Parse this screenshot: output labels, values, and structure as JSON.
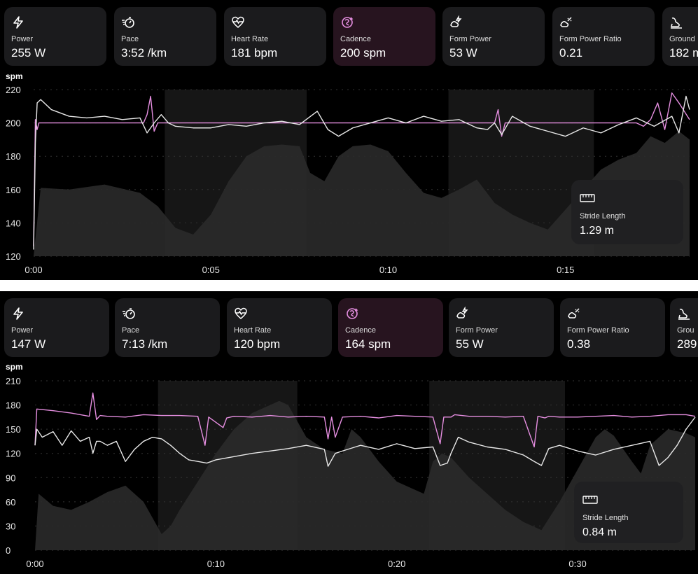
{
  "colors": {
    "accent": "#e58ee0",
    "line": "#e8e8e8",
    "card": "#1b1b1d",
    "card_active": "#27141f",
    "shade": "#2a2a2a"
  },
  "panels": [
    {
      "cards": [
        {
          "icon": "lightning-icon",
          "label": "Power",
          "value": "255 W"
        },
        {
          "icon": "stopwatch-icon",
          "label": "Pace",
          "value": "3:52 /km"
        },
        {
          "icon": "heart-pulse-icon",
          "label": "Heart Rate",
          "value": "181 bpm"
        },
        {
          "icon": "cadence-icon",
          "label": "Cadence",
          "value": "200 spm",
          "active": true
        },
        {
          "icon": "form-power-icon",
          "label": "Form Power",
          "value": "53 W"
        },
        {
          "icon": "form-power-ratio-icon",
          "label": "Form Power Ratio",
          "value": "0.21"
        },
        {
          "icon": "ground-contact-icon",
          "label": "Ground",
          "value": "182 m"
        }
      ],
      "unit": "spm",
      "stride": {
        "label": "Stride Length",
        "value": "1.29 m"
      },
      "chart_data": {
        "type": "line",
        "ylim": [
          120,
          220
        ],
        "yticks": [
          120,
          140,
          160,
          180,
          200,
          220
        ],
        "xticks": [
          "0:00",
          "0:05",
          "0:10",
          "0:15"
        ],
        "xtick_minutes": [
          0,
          5,
          10,
          15
        ],
        "duration_min": 18.5,
        "lap_bands_min": [
          [
            3.7,
            7.7
          ],
          [
            11.7,
            15.8
          ]
        ],
        "series": [
          {
            "color": "#e58ee0",
            "x": [
              0,
              0.05,
              0.1,
              0.15,
              0.2,
              3.1,
              3.2,
              3.3,
              3.4,
              3.5,
              3.6,
              13.0,
              13.1,
              13.2,
              13.3,
              13.4,
              17.0,
              17.2,
              17.4,
              17.6,
              17.8,
              18.0,
              18.2,
              18.5
            ],
            "y": [
              126,
              202,
              196,
              200,
              200,
              200,
              205,
              216,
              195,
              200,
              200,
              200,
              208,
              192,
              200,
              200,
              200,
              198,
              202,
              212,
              196,
              218,
              212,
              202
            ]
          },
          {
            "color": "#e8e8e8",
            "x": [
              0,
              0.05,
              0.1,
              0.2,
              0.5,
              1.0,
              1.5,
              2.0,
              2.5,
              3.0,
              3.2,
              3.4,
              3.6,
              3.8,
              4.0,
              4.5,
              5.0,
              5.5,
              6.0,
              6.5,
              7.0,
              7.5,
              8.0,
              8.3,
              8.6,
              9.0,
              9.5,
              10.0,
              10.5,
              11.0,
              11.5,
              12.0,
              12.5,
              12.8,
              13.0,
              13.2,
              13.5,
              14.0,
              14.5,
              15.0,
              15.5,
              16.0,
              16.5,
              17.0,
              17.5,
              18.0,
              18.2,
              18.4,
              18.5
            ],
            "y": [
              124,
              188,
              212,
              214,
              208,
              204,
              203,
              204,
              202,
              203,
              194,
              200,
              205,
              200,
              198,
              197,
              197,
              199,
              198,
              200,
              201,
              199,
              207,
              196,
              192,
              197,
              200,
              203,
              200,
              204,
              201,
              202,
              197,
              196,
              200,
              193,
              204,
              198,
              195,
              192,
              197,
              194,
              199,
              203,
              198,
              204,
              194,
              216,
              208
            ]
          },
          {
            "color": "#2a2a2a",
            "fill": true,
            "x": [
              0,
              0.2,
              1.0,
              2.0,
              3.0,
              3.5,
              4.0,
              4.5,
              5.0,
              5.5,
              6.0,
              6.5,
              7.0,
              7.5,
              7.8,
              8.2,
              8.6,
              9.0,
              9.5,
              10.0,
              10.5,
              11.0,
              11.5,
              12.0,
              12.5,
              13.0,
              13.5,
              14.0,
              14.5,
              15.0,
              15.5,
              16.0,
              16.5,
              17.0,
              17.4,
              17.8,
              18.2,
              18.5
            ],
            "y": [
              120,
              161,
              160,
              163,
              158,
              150,
              137,
              133,
              145,
              165,
              180,
              186,
              187,
              186,
              170,
              165,
              180,
              186,
              187,
              183,
              170,
              158,
              155,
              160,
              166,
              152,
              145,
              140,
              136,
              148,
              160,
              172,
              178,
              182,
              192,
              188,
              195,
              190
            ]
          }
        ]
      }
    },
    {
      "cards": [
        {
          "icon": "lightning-icon",
          "label": "Power",
          "value": "147 W"
        },
        {
          "icon": "stopwatch-icon",
          "label": "Pace",
          "value": "7:13 /km"
        },
        {
          "icon": "heart-pulse-icon",
          "label": "Heart Rate",
          "value": "120 bpm"
        },
        {
          "icon": "cadence-icon",
          "label": "Cadence",
          "value": "164 spm",
          "active": true
        },
        {
          "icon": "form-power-icon",
          "label": "Form Power",
          "value": "55 W"
        },
        {
          "icon": "form-power-ratio-icon",
          "label": "Form Power Ratio",
          "value": "0.38"
        },
        {
          "icon": "ground-contact-icon",
          "label": "Grou",
          "value": "289"
        }
      ],
      "unit": "spm",
      "stride": {
        "label": "Stride Length",
        "value": "0.84 m"
      },
      "chart_data": {
        "type": "line",
        "ylim": [
          0,
          210
        ],
        "yticks": [
          0,
          30,
          60,
          90,
          120,
          150,
          180,
          210
        ],
        "xticks": [
          "0:00",
          "0:10",
          "0:20",
          "0:30"
        ],
        "xtick_minutes": [
          0,
          10,
          20,
          30
        ],
        "duration_min": 36.5,
        "lap_bands_min": [
          [
            6.8,
            14.5
          ],
          [
            21.8,
            29.3
          ]
        ],
        "series": [
          {
            "color": "#e58ee0",
            "x": [
              0,
              0.1,
              1,
              2,
              3,
              3.2,
              3.4,
              3.6,
              4,
              5,
              6,
              7,
              8,
              9,
              9.4,
              9.6,
              10.4,
              10.6,
              11,
              12,
              13,
              14,
              15,
              16,
              16.2,
              16.4,
              16.6,
              17,
              18,
              19,
              20,
              21,
              22,
              22.4,
              22.6,
              23.0,
              23.2,
              24,
              25,
              26,
              27,
              27.6,
              27.8,
              28.2,
              28.4,
              29,
              30,
              31,
              32,
              33,
              34,
              35,
              36,
              36.5
            ],
            "y": [
              130,
              175,
              173,
              170,
              166,
              195,
              162,
              167,
              166,
              165,
              168,
              167,
              167,
              166,
              130,
              165,
              152,
              164,
              166,
              165,
              167,
              165,
              166,
              165,
              138,
              165,
              140,
              165,
              166,
              164,
              167,
              166,
              165,
              132,
              165,
              165,
              168,
              166,
              166,
              165,
              166,
              128,
              166,
              164,
              166,
              165,
              165,
              166,
              167,
              165,
              166,
              168,
              168,
              166
            ]
          },
          {
            "color": "#e8e8e8",
            "x": [
              0,
              0.1,
              0.4,
              1,
              1.5,
              2,
              2.5,
              3,
              3.2,
              3.4,
              3.6,
              4,
              4.5,
              5,
              5.5,
              6,
              6.5,
              7,
              7.5,
              8,
              8.5,
              9,
              9.5,
              10,
              11,
              12,
              13,
              14,
              15,
              16,
              16.2,
              16.6,
              17,
              18,
              19,
              20,
              21,
              22,
              22.4,
              22.8,
              23.0,
              23.4,
              24,
              25,
              26,
              27,
              27.6,
              28.0,
              28.4,
              29,
              30,
              31,
              32,
              33,
              34,
              34.5,
              35,
              35.5,
              36,
              36.5
            ],
            "y": [
              130,
              150,
              140,
              147,
              130,
              148,
              135,
              140,
              120,
              135,
              135,
              130,
              135,
              110,
              125,
              135,
              140,
              138,
              130,
              120,
              112,
              110,
              108,
              112,
              116,
              120,
              123,
              126,
              130,
              125,
              104,
              120,
              123,
              130,
              125,
              132,
              126,
              128,
              105,
              108,
              120,
              140,
              134,
              128,
              125,
              118,
              110,
              105,
              126,
              130,
              123,
              118,
              125,
              130,
              135,
              105,
              115,
              130,
              150,
              165
            ]
          },
          {
            "color": "#2a2a2a",
            "fill": true,
            "x": [
              0,
              0.2,
              1,
              2,
              3,
              4,
              5,
              6,
              6.5,
              7,
              7.5,
              8,
              9,
              10,
              11,
              12,
              13,
              13.5,
              14,
              14.5,
              15,
              16,
              17,
              17.5,
              18,
              19,
              20,
              21,
              21.5,
              22,
              22.5,
              23,
              24,
              25,
              26,
              27,
              28,
              29,
              30,
              31,
              31.5,
              32,
              33,
              33.5,
              34,
              35,
              36,
              36.5
            ],
            "y": [
              0,
              70,
              55,
              50,
              60,
              72,
              80,
              60,
              40,
              20,
              30,
              50,
              85,
              120,
              150,
              170,
              180,
              185,
              180,
              160,
              140,
              125,
              120,
              150,
              140,
              110,
              85,
              75,
              70,
              110,
              120,
              115,
              90,
              70,
              50,
              35,
              25,
              60,
              100,
              140,
              150,
              142,
              110,
              95,
              130,
              150,
              145,
              140
            ]
          }
        ]
      }
    }
  ]
}
